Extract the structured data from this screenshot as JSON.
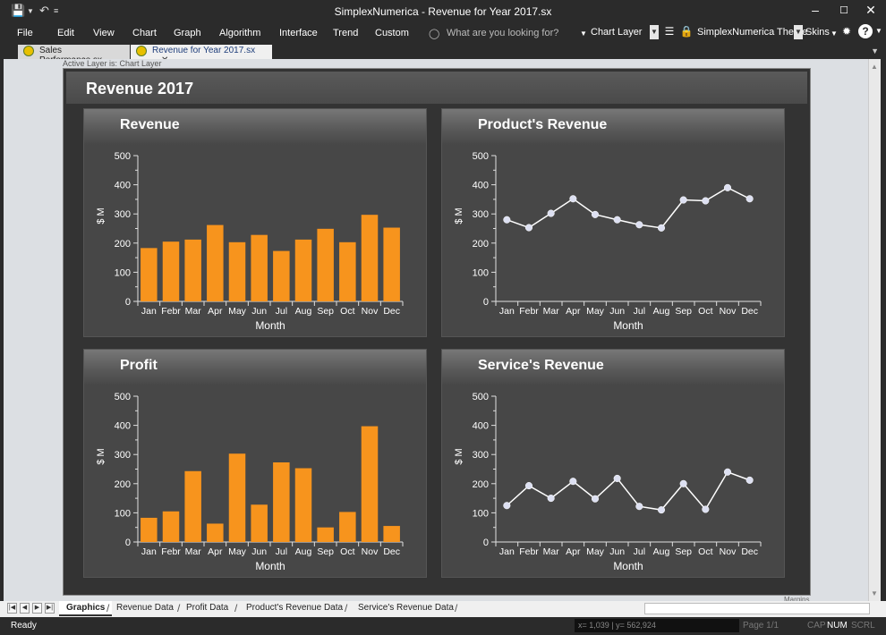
{
  "window": {
    "title": "SimplexNumerica - Revenue for Year 2017.sx"
  },
  "menu": {
    "items": [
      "File",
      "Edit",
      "View",
      "Chart",
      "Graph",
      "Algorithm",
      "Interface",
      "Trend",
      "Custom"
    ],
    "search_placeholder": "What are you looking for?",
    "layer_label": "Chart Layer",
    "theme_label": "SimplexNumerica Theme",
    "skins_label": "Skins"
  },
  "doc_tabs": [
    {
      "label": "Sales Performance.sx",
      "active": false
    },
    {
      "label": "Revenue for Year 2017.sx",
      "active": true
    }
  ],
  "active_layer_text": "Active Layer is: Chart Layer",
  "margins_text": "Margins",
  "dashboard": {
    "title": "Revenue 2017"
  },
  "chart_data": [
    {
      "type": "bar",
      "title": "Revenue",
      "xlabel": "Month",
      "ylabel": "$ M",
      "categories": [
        "Jan",
        "Febr",
        "Mar",
        "Apr",
        "May",
        "Jun",
        "Jul",
        "Aug",
        "Sep",
        "Oct",
        "Nov",
        "Dec"
      ],
      "values": [
        183,
        205,
        212,
        262,
        203,
        228,
        173,
        212,
        249,
        203,
        297,
        253
      ],
      "ylim": [
        0,
        500
      ],
      "yticks": [
        0,
        100,
        200,
        300,
        400,
        500
      ],
      "color": "#f7941d"
    },
    {
      "type": "line",
      "title": "Product's Revenue",
      "xlabel": "Month",
      "ylabel": "$ M",
      "categories": [
        "Jan",
        "Febr",
        "Mar",
        "Apr",
        "May",
        "Jun",
        "Jul",
        "Aug",
        "Sep",
        "Oct",
        "Nov",
        "Dec"
      ],
      "values": [
        280,
        253,
        302,
        352,
        298,
        280,
        263,
        252,
        348,
        345,
        390,
        352
      ],
      "ylim": [
        0,
        500
      ],
      "yticks": [
        0,
        100,
        200,
        300,
        400,
        500
      ],
      "color": "#ffffff"
    },
    {
      "type": "bar",
      "title": "Profit",
      "xlabel": "Month",
      "ylabel": "$ M",
      "categories": [
        "Jan",
        "Febr",
        "Mar",
        "Apr",
        "May",
        "Jun",
        "Jul",
        "Aug",
        "Sep",
        "Oct",
        "Nov",
        "Dec"
      ],
      "values": [
        83,
        105,
        243,
        63,
        303,
        128,
        273,
        253,
        50,
        103,
        397,
        55
      ],
      "ylim": [
        0,
        500
      ],
      "yticks": [
        0,
        100,
        200,
        300,
        400,
        500
      ],
      "color": "#f7941d"
    },
    {
      "type": "line",
      "title": "Service's Revenue",
      "xlabel": "Month",
      "ylabel": "$ M",
      "categories": [
        "Jan",
        "Febr",
        "Mar",
        "Apr",
        "May",
        "Jun",
        "Jul",
        "Aug",
        "Sep",
        "Oct",
        "Nov",
        "Dec"
      ],
      "values": [
        125,
        193,
        150,
        208,
        148,
        218,
        122,
        110,
        200,
        112,
        240,
        212
      ],
      "ylim": [
        0,
        500
      ],
      "yticks": [
        0,
        100,
        200,
        300,
        400,
        500
      ],
      "color": "#ffffff"
    }
  ],
  "sheet_tabs": [
    "Graphics",
    "Revenue Data",
    "Profit Data",
    "Product's Revenue Data",
    "Service's Revenue Data"
  ],
  "status": {
    "ready": "Ready",
    "coords": "x= 1,039 | y= 562,924",
    "page": "Page 1/1",
    "cap": "CAP",
    "num": "NUM",
    "scrl": "SCRL"
  }
}
